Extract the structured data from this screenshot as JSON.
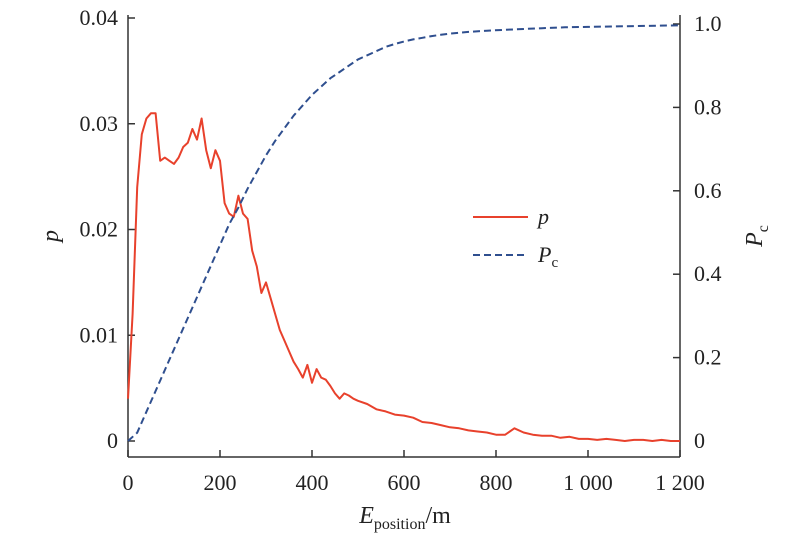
{
  "chart_data": {
    "type": "line",
    "x_axis": {
      "label_main": "E",
      "label_sub": "position",
      "label_unit": "/m",
      "lim": [
        0,
        1200
      ],
      "ticks": [
        0,
        200,
        400,
        600,
        800,
        1000,
        1200
      ],
      "tick_labels": [
        "0",
        "200",
        "400",
        "600",
        "800",
        "1 000",
        "1 200"
      ]
    },
    "y_axis_left": {
      "label": "p",
      "lim": [
        0,
        0.04
      ],
      "ticks": [
        0,
        0.01,
        0.02,
        0.03,
        0.04
      ],
      "tick_labels": [
        "0",
        "0.01",
        "0.02",
        "0.03",
        "0.04"
      ]
    },
    "y_axis_right": {
      "label_main": "P",
      "label_sub": "c",
      "lim": [
        0,
        1.0
      ],
      "ticks": [
        0,
        0.2,
        0.4,
        0.6,
        0.8,
        1.0
      ],
      "tick_labels": [
        "0",
        "0.2",
        "0.4",
        "0.6",
        "0.8",
        "1.0"
      ]
    },
    "legend_position": "center-right",
    "series": [
      {
        "name": "p",
        "label_main": "p",
        "label_sub": "",
        "axis": "left",
        "color": "#e8412c",
        "dash": "solid",
        "x": [
          0,
          10,
          20,
          30,
          40,
          50,
          60,
          70,
          80,
          90,
          100,
          110,
          120,
          130,
          140,
          150,
          160,
          170,
          180,
          190,
          200,
          210,
          220,
          230,
          240,
          250,
          260,
          270,
          280,
          290,
          300,
          310,
          320,
          330,
          340,
          350,
          360,
          370,
          380,
          390,
          400,
          410,
          420,
          430,
          440,
          450,
          460,
          470,
          480,
          490,
          500,
          520,
          540,
          560,
          580,
          600,
          620,
          640,
          660,
          680,
          700,
          720,
          740,
          760,
          780,
          800,
          820,
          840,
          860,
          880,
          900,
          920,
          940,
          960,
          980,
          1000,
          1020,
          1040,
          1060,
          1080,
          1100,
          1120,
          1140,
          1160,
          1180,
          1200
        ],
        "y": [
          0.004,
          0.012,
          0.024,
          0.029,
          0.0305,
          0.031,
          0.031,
          0.0265,
          0.0268,
          0.0265,
          0.0262,
          0.0268,
          0.0278,
          0.0282,
          0.0295,
          0.0285,
          0.0305,
          0.0275,
          0.0258,
          0.0275,
          0.0265,
          0.0225,
          0.0215,
          0.0212,
          0.0232,
          0.0215,
          0.021,
          0.018,
          0.0165,
          0.014,
          0.015,
          0.0135,
          0.012,
          0.0105,
          0.0095,
          0.0085,
          0.0075,
          0.0068,
          0.006,
          0.0072,
          0.0055,
          0.0068,
          0.006,
          0.0058,
          0.0052,
          0.0045,
          0.004,
          0.0045,
          0.0043,
          0.004,
          0.0038,
          0.0035,
          0.003,
          0.0028,
          0.0025,
          0.0024,
          0.0022,
          0.0018,
          0.0017,
          0.0015,
          0.0013,
          0.0012,
          0.001,
          0.0009,
          0.0008,
          0.0006,
          0.0006,
          0.0012,
          0.0008,
          0.0006,
          0.0005,
          0.0005,
          0.0003,
          0.0004,
          0.0002,
          0.0002,
          0.0001,
          0.0002,
          0.0001,
          0,
          0.0001,
          0.0001,
          0,
          0.0001,
          0,
          0
        ]
      },
      {
        "name": "Pc",
        "label_main": "P",
        "label_sub": "c",
        "axis": "right",
        "color": "#2f4f8f",
        "dash": "dashed",
        "x": [
          0,
          20,
          40,
          60,
          80,
          100,
          120,
          140,
          160,
          180,
          200,
          220,
          240,
          260,
          280,
          300,
          320,
          340,
          360,
          380,
          400,
          420,
          440,
          460,
          480,
          500,
          520,
          540,
          560,
          580,
          600,
          620,
          640,
          660,
          680,
          700,
          740,
          780,
          820,
          860,
          900,
          950,
          1000,
          1050,
          1100,
          1150,
          1200
        ],
        "y": [
          0.0,
          0.02,
          0.07,
          0.12,
          0.17,
          0.22,
          0.27,
          0.32,
          0.37,
          0.42,
          0.47,
          0.52,
          0.56,
          0.605,
          0.645,
          0.685,
          0.72,
          0.75,
          0.78,
          0.805,
          0.83,
          0.85,
          0.87,
          0.885,
          0.9,
          0.915,
          0.925,
          0.935,
          0.945,
          0.952,
          0.958,
          0.963,
          0.967,
          0.971,
          0.974,
          0.977,
          0.981,
          0.984,
          0.986,
          0.988,
          0.99,
          0.992,
          0.993,
          0.994,
          0.995,
          0.996,
          0.997
        ]
      }
    ]
  }
}
